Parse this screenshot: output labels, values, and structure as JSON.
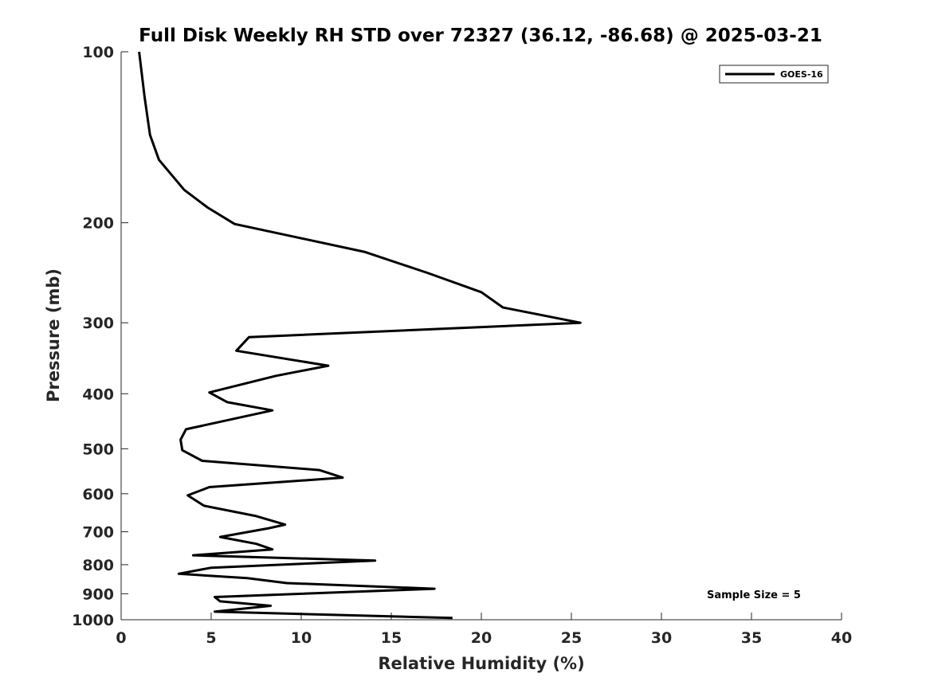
{
  "chart_data": {
    "type": "line",
    "title": "Full Disk Weekly RH STD over 72327 (36.12, -86.68) @ 2025-03-21",
    "xlabel": "Relative Humidity (%)",
    "ylabel": "Pressure (mb)",
    "xlim": [
      0,
      40
    ],
    "ylim": [
      100,
      1000
    ],
    "yscale": "log",
    "ydirection": "reverse",
    "xticks": [
      0,
      5,
      10,
      15,
      20,
      25,
      30,
      35,
      40
    ],
    "yticks": [
      100,
      200,
      300,
      400,
      500,
      600,
      700,
      800,
      900,
      1000
    ],
    "grid": false,
    "legend_position": "top-right",
    "series": [
      {
        "name": "GOES-16",
        "color": "#000000",
        "points": [
          [
            1.0,
            100
          ],
          [
            1.3,
            120
          ],
          [
            1.6,
            140
          ],
          [
            2.1,
            155
          ],
          [
            3.5,
            175
          ],
          [
            4.8,
            188
          ],
          [
            6.3,
            201
          ],
          [
            13.5,
            225
          ],
          [
            17.0,
            245
          ],
          [
            20.0,
            265
          ],
          [
            21.2,
            282
          ],
          [
            25.5,
            300
          ],
          [
            7.1,
            318
          ],
          [
            6.4,
            336
          ],
          [
            11.5,
            357
          ],
          [
            8.6,
            372
          ],
          [
            4.9,
            398
          ],
          [
            5.9,
            414
          ],
          [
            8.4,
            428
          ],
          [
            3.6,
            462
          ],
          [
            3.3,
            482
          ],
          [
            3.4,
            503
          ],
          [
            4.5,
            525
          ],
          [
            11.0,
            545
          ],
          [
            12.3,
            562
          ],
          [
            4.9,
            584
          ],
          [
            3.7,
            604
          ],
          [
            4.6,
            630
          ],
          [
            7.5,
            657
          ],
          [
            9.1,
            680
          ],
          [
            8.2,
            690
          ],
          [
            5.5,
            715
          ],
          [
            7.5,
            735
          ],
          [
            8.4,
            752
          ],
          [
            4.0,
            770
          ],
          [
            14.1,
            787
          ],
          [
            5.0,
            810
          ],
          [
            3.2,
            830
          ],
          [
            7.0,
            845
          ],
          [
            9.2,
            862
          ],
          [
            17.4,
            882
          ],
          [
            5.2,
            912
          ],
          [
            5.5,
            928
          ],
          [
            8.3,
            945
          ],
          [
            5.2,
            968
          ],
          [
            18.4,
            993
          ]
        ]
      }
    ],
    "annotations": [
      "Sample Size = 5"
    ]
  }
}
